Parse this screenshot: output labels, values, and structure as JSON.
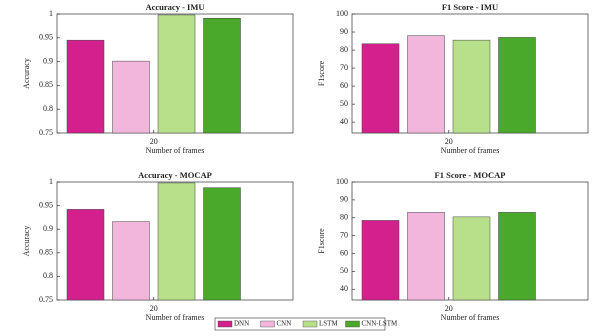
{
  "chart_data": [
    {
      "type": "bar",
      "title": "Accuracy - IMU",
      "x_label": "Number of frames",
      "y_label": "Accuracy",
      "categories": [
        "20"
      ],
      "series": [
        {
          "name": "DNN",
          "color": "#d4208c",
          "values": [
            0.945
          ]
        },
        {
          "name": "CNN",
          "color": "#f2b6dc",
          "values": [
            0.901
          ]
        },
        {
          "name": "LSTM",
          "color": "#b8e08a",
          "values": [
            0.998
          ]
        },
        {
          "name": "CNN-LSTM",
          "color": "#4aa82a",
          "values": [
            0.991
          ]
        }
      ],
      "ylim": [
        0.75,
        1
      ],
      "yticks": [
        0.75,
        0.8,
        0.85,
        0.9,
        0.95,
        1
      ]
    },
    {
      "type": "bar",
      "title": "F1 Score - IMU",
      "x_label": "Number of frames",
      "y_label": "F1score",
      "categories": [
        "20"
      ],
      "series": [
        {
          "color": "#d4208c",
          "values": [
            83.5
          ]
        },
        {
          "color": "#f2b6dc",
          "values": [
            88
          ]
        },
        {
          "color": "#b8e08a",
          "values": [
            85.5
          ]
        },
        {
          "color": "#4aa82a",
          "values": [
            87
          ]
        }
      ],
      "ylim": [
        34,
        100
      ],
      "yticks": [
        40,
        50,
        60,
        70,
        80,
        90,
        100
      ]
    },
    {
      "type": "bar",
      "title": "Accuracy - MOCAP",
      "x_label": "Number of frames",
      "y_label": "Accuracy",
      "categories": [
        "20"
      ],
      "series": [
        {
          "color": "#d4208c",
          "values": [
            0.942
          ]
        },
        {
          "color": "#f2b6dc",
          "values": [
            0.916
          ]
        },
        {
          "color": "#b8e08a",
          "values": [
            0.998
          ]
        },
        {
          "color": "#4aa82a",
          "values": [
            0.988
          ]
        }
      ],
      "ylim": [
        0.75,
        1
      ],
      "yticks": [
        0.75,
        0.8,
        0.85,
        0.9,
        0.95,
        1
      ]
    },
    {
      "type": "bar",
      "title": "F1 Score - MOCAP",
      "x_label": "Number of frames",
      "y_label": "F1score",
      "categories": [
        "20"
      ],
      "series": [
        {
          "color": "#d4208c",
          "values": [
            78.5
          ]
        },
        {
          "color": "#f2b6dc",
          "values": [
            83
          ]
        },
        {
          "color": "#b8e08a",
          "values": [
            80.5
          ]
        },
        {
          "color": "#4aa82a",
          "values": [
            83
          ]
        }
      ],
      "ylim": [
        34,
        100
      ],
      "yticks": [
        40,
        50,
        60,
        70,
        80,
        90,
        100
      ]
    }
  ]
}
